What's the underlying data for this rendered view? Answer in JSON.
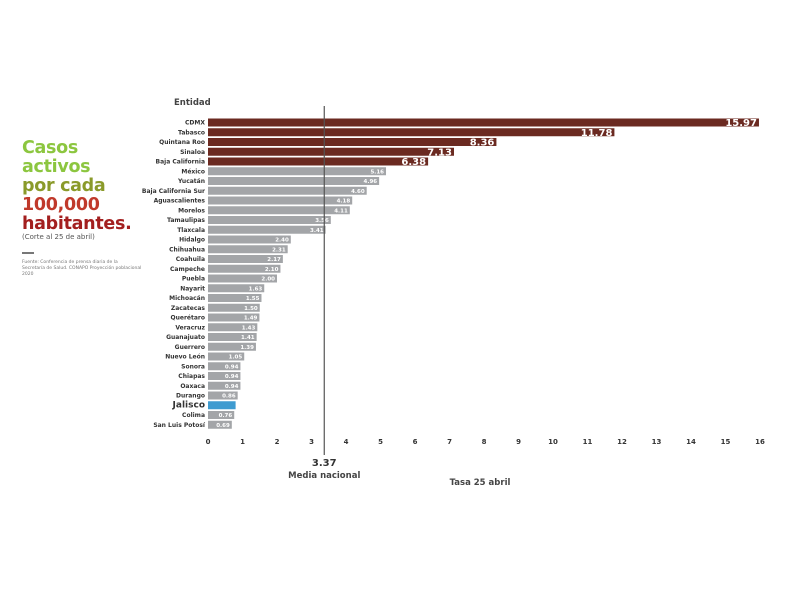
{
  "heading": {
    "line1": "Casos",
    "line2": "activos",
    "line3": "por cada",
    "line4": "100,000",
    "line5": "habitantes."
  },
  "cutoff_note": "(Corte al 25 de abril)",
  "source_note": "Fuente: Conferencia de prensa diaria de la Secretaría de Salud. CONAPO Proyección poblacional 2020",
  "colors": {
    "top5": "#6b2a21",
    "default": "#a3a5a8",
    "highlight": "#3e9bd0",
    "highlight_text": "#3e9bd0"
  },
  "chart_data": {
    "type": "bar",
    "orientation": "horizontal",
    "category_header": "Entidad",
    "xlabel": "Tasa 25 abril",
    "xlim": [
      0,
      16
    ],
    "xticks": [
      0,
      1,
      2,
      3,
      4,
      5,
      6,
      7,
      8,
      9,
      10,
      11,
      12,
      13,
      14,
      15,
      16
    ],
    "grid": false,
    "reference_line": {
      "value": 3.37,
      "value_label": "3.37",
      "label": "Media nacional"
    },
    "categories": [
      "CDMX",
      "Tabasco",
      "Quintana Roo",
      "Sinaloa",
      "Baja California",
      "México",
      "Yucatán",
      "Baja California Sur",
      "Aguascalientes",
      "Morelos",
      "Tamaulipas",
      "Tlaxcala",
      "Hidalgo",
      "Chihuahua",
      "Coahuila",
      "Campeche",
      "Puebla",
      "Nayarit",
      "Michoacán",
      "Zacatecas",
      "Querétaro",
      "Veracruz",
      "Guanajuato",
      "Guerrero",
      "Nuevo León",
      "Sonora",
      "Chiapas",
      "Oaxaca",
      "Durango",
      "Jalisco",
      "Colima",
      "San Luis Potosí"
    ],
    "values": [
      15.97,
      11.78,
      8.36,
      7.13,
      6.38,
      5.16,
      4.96,
      4.6,
      4.18,
      4.11,
      3.56,
      3.41,
      2.4,
      2.31,
      2.17,
      2.1,
      2.0,
      1.63,
      1.55,
      1.5,
      1.49,
      1.43,
      1.41,
      1.39,
      1.05,
      0.94,
      0.94,
      0.94,
      0.86,
      0.8,
      0.76,
      0.69
    ],
    "value_labels": [
      "15.97",
      "11.78",
      "8.36",
      "7.13",
      "6.38",
      "5.16",
      "4.96",
      "4.60",
      "4.18",
      "4.11",
      "3.56",
      "3.41",
      "2.40",
      "2.31",
      "2.17",
      "2.10",
      "2.00",
      "1.63",
      "1.55",
      "1.50",
      "1.49",
      "1.43",
      "1.41",
      "1.39",
      "1.05",
      "0.94",
      "0.94",
      "0.94",
      "0.86",
      "0.80",
      "0.76",
      "0.69"
    ],
    "highlight": "Jalisco",
    "top_group_count": 5
  }
}
